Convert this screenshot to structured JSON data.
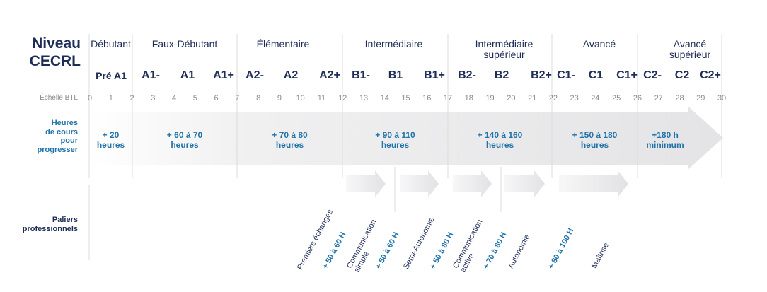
{
  "title": {
    "line1": "Niveau",
    "line2": "CECRL"
  },
  "categories": [
    {
      "label": "Débutant"
    },
    {
      "label": "Faux-Débutant"
    },
    {
      "label": "Élémentaire"
    },
    {
      "label": "Intermédiaire"
    },
    {
      "line1": "Intermédiaire",
      "line2": "supérieur"
    },
    {
      "label": "Avancé"
    },
    {
      "line1": "Avancé",
      "line2": "supérieur"
    }
  ],
  "sublevels": {
    "pre_a1": "Pré A1",
    "a1m": "A1-",
    "a1": "A1",
    "a1p": "A1+",
    "a2m": "A2-",
    "a2": "A2",
    "a2p": "A2+",
    "b1m": "B1-",
    "b1": "B1",
    "b1p": "B1+",
    "b2m": "B2-",
    "b2": "B2",
    "b2p": "B2+",
    "c1m": "C1-",
    "c1": "C1",
    "c1p": "C1+",
    "c2m": "C2-",
    "c2": "C2",
    "c2p": "C2+"
  },
  "scale": {
    "label": "Échelle BTL",
    "ticks": [
      "0",
      "1",
      "2",
      "3",
      "4",
      "5",
      "6",
      "7",
      "8",
      "9",
      "10",
      "11",
      "12",
      "13",
      "14",
      "15",
      "16",
      "17",
      "18",
      "19",
      "20",
      "21",
      "22",
      "23",
      "24",
      "25",
      "26",
      "27",
      "28",
      "29",
      "30"
    ]
  },
  "hours_row": {
    "label_line1": "Heures",
    "label_line2": "de cours",
    "label_line3": "pour",
    "label_line4": "progresser",
    "cells": [
      {
        "line1": "+ 20",
        "line2": "heures"
      },
      {
        "line1": "+ 60 à 70",
        "line2": "heures"
      },
      {
        "line1": "+ 70 à 80",
        "line2": "heures"
      },
      {
        "line1": "+ 90 à 110",
        "line2": "heures"
      },
      {
        "line1": "+ 140 à 160",
        "line2": "heures"
      },
      {
        "line1": "+ 150 à 180",
        "line2": "heures"
      },
      {
        "line1": "+180 h",
        "line2": "minimum"
      }
    ]
  },
  "paliers": {
    "label_line1": "Paliers",
    "label_line2": "professionnels",
    "items": [
      {
        "name": "Premiers échanges"
      },
      {
        "hours": "+ 50 à 60 H"
      },
      {
        "line1": "Communication",
        "line2": "simple"
      },
      {
        "hours": "+ 50 à 60 H"
      },
      {
        "name": "Semi-Autonomie"
      },
      {
        "hours": "+ 50 à 80 H"
      },
      {
        "line1": "Communication",
        "line2": "active"
      },
      {
        "hours": "+ 70 à 80 H"
      },
      {
        "name": "Autonomie"
      },
      {
        "hours": "+ 80 à 100 H"
      },
      {
        "name": "Maîtrise"
      }
    ]
  },
  "colors": {
    "navy": "#1e2c58",
    "blue": "#1f73a8",
    "grey": "#8a8a8a",
    "arrow": "#e9e9ea"
  }
}
